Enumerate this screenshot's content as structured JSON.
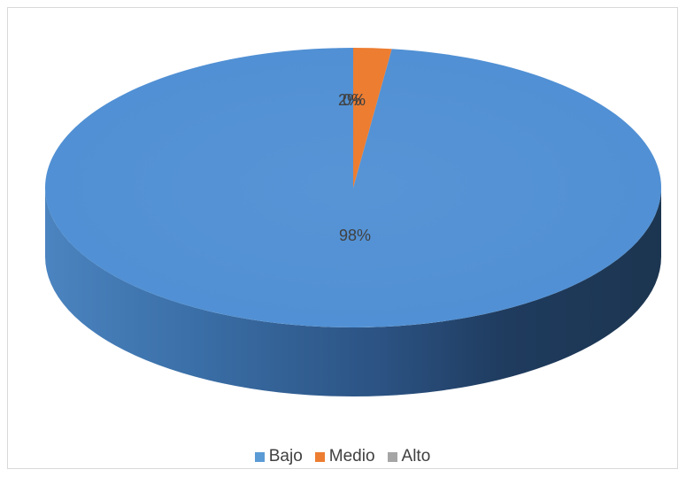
{
  "chart_data": {
    "type": "pie",
    "style": "3d",
    "title": "",
    "categories": [
      "Bajo",
      "Medio",
      "Alto"
    ],
    "values": [
      98,
      2,
      0
    ],
    "data_labels": [
      "98%",
      "2%",
      "0%"
    ],
    "colors": [
      "#5b9bd5",
      "#ed7d31",
      "#a5a5a5"
    ],
    "legend": {
      "position": "bottom",
      "entries": [
        "Bajo",
        "Medio",
        "Alto"
      ]
    }
  }
}
